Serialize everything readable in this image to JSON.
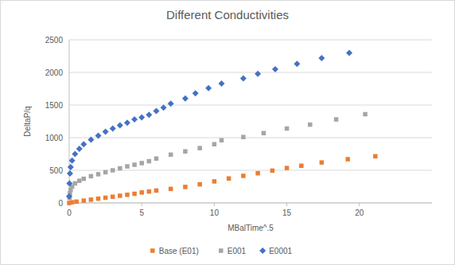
{
  "chart_data": {
    "type": "scatter",
    "title": "Different Conductivities",
    "x_label": "MBalTime^.5",
    "y_label": "DeltaP/q",
    "xlim": [
      0,
      25
    ],
    "xticks": [
      0,
      5,
      10,
      15,
      20
    ],
    "ylim": [
      0,
      2500
    ],
    "yticks": [
      0,
      500,
      1000,
      1500,
      2000,
      2500
    ],
    "grid": true,
    "legend": "bottom",
    "series": [
      {
        "name": "Base (E01)",
        "color": "#ed7d31",
        "marker": "square",
        "x": [
          0,
          0.2,
          0.5,
          1,
          1.5,
          2,
          2.5,
          3,
          3.5,
          4,
          4.5,
          5,
          5.5,
          6,
          7,
          8,
          9,
          10,
          11,
          12,
          13,
          14,
          15,
          16,
          17.4,
          19.2,
          21.1
        ],
        "values": [
          0,
          10,
          20,
          35,
          50,
          65,
          80,
          95,
          110,
          125,
          140,
          160,
          175,
          190,
          215,
          245,
          285,
          330,
          375,
          415,
          455,
          495,
          535,
          570,
          620,
          670,
          715
        ]
      },
      {
        "name": "E001",
        "color": "#a5a5a5",
        "marker": "square",
        "x": [
          0.02,
          0.05,
          0.1,
          0.2,
          0.4,
          0.7,
          1,
          1.5,
          2,
          2.5,
          3,
          3.5,
          4,
          4.5,
          5,
          5.5,
          6,
          7,
          8,
          9,
          10,
          10.5,
          12,
          13.4,
          15,
          16.6,
          18.4,
          20.4
        ],
        "values": [
          80,
          150,
          200,
          250,
          300,
          340,
          370,
          410,
          440,
          470,
          500,
          530,
          560,
          585,
          610,
          640,
          680,
          740,
          790,
          840,
          900,
          960,
          1010,
          1070,
          1140,
          1200,
          1280,
          1360
        ]
      },
      {
        "name": "E0001",
        "color": "#4472c4",
        "marker": "diamond",
        "x": [
          0,
          0.02,
          0.05,
          0.1,
          0.2,
          0.4,
          0.7,
          1,
          1.5,
          2,
          2.5,
          3,
          3.5,
          4,
          4.5,
          5,
          5.5,
          6,
          6.5,
          7,
          8,
          8.7,
          9.6,
          10.5,
          12,
          13,
          14.2,
          15.7,
          17.4,
          19.3
        ],
        "values": [
          100,
          300,
          450,
          550,
          650,
          750,
          830,
          900,
          970,
          1030,
          1090,
          1140,
          1190,
          1230,
          1280,
          1310,
          1350,
          1410,
          1460,
          1520,
          1600,
          1680,
          1760,
          1830,
          1910,
          1980,
          2050,
          2130,
          2220,
          2300
        ]
      }
    ]
  }
}
